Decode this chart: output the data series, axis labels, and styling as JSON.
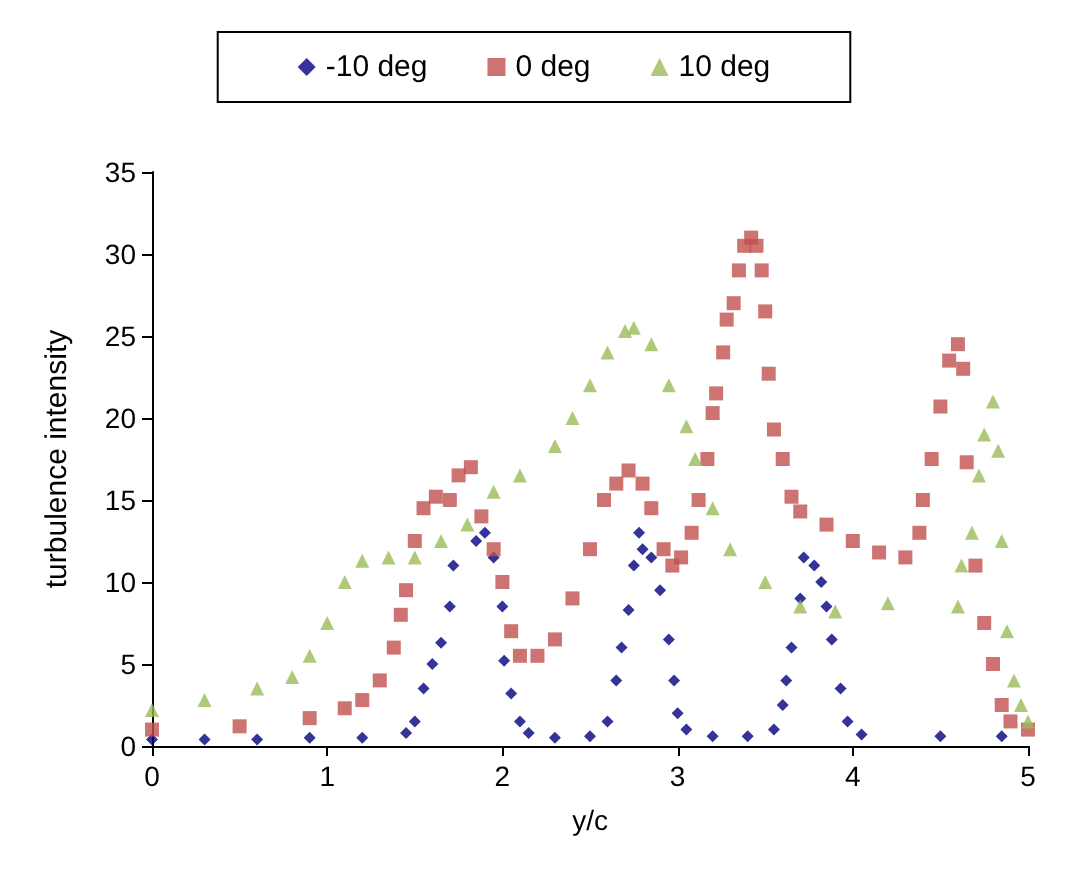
{
  "chart_data": {
    "type": "scatter",
    "xlabel": "y/c",
    "ylabel": "turbulence intensity",
    "xlim": [
      0,
      5
    ],
    "xticks": [
      0,
      1,
      2,
      3,
      4,
      5
    ],
    "ylim": [
      0,
      35
    ],
    "yticks": [
      0,
      5,
      10,
      15,
      20,
      25,
      30,
      35
    ],
    "grid": false,
    "legend": "top",
    "series": [
      {
        "name": "-10 deg",
        "color": "#000080",
        "marker": "diamond",
        "x": [
          0,
          0.3,
          0.6,
          0.9,
          1.2,
          1.45,
          1.5,
          1.55,
          1.6,
          1.65,
          1.7,
          1.72,
          1.85,
          1.9,
          1.95,
          2.0,
          2.01,
          2.05,
          2.1,
          2.15,
          2.3,
          2.5,
          2.6,
          2.65,
          2.68,
          2.72,
          2.75,
          2.78,
          2.8,
          2.85,
          2.9,
          2.95,
          2.98,
          3.0,
          3.05,
          3.2,
          3.4,
          3.55,
          3.6,
          3.62,
          3.65,
          3.7,
          3.72,
          3.78,
          3.82,
          3.85,
          3.88,
          3.93,
          3.97,
          4.05,
          4.5,
          4.85
        ],
        "values": [
          0.4,
          0.4,
          0.4,
          0.5,
          0.5,
          0.8,
          1.5,
          3.5,
          5,
          6.3,
          8.5,
          11,
          12.5,
          13,
          11.5,
          8.5,
          5.2,
          3.2,
          1.5,
          0.8,
          0.5,
          0.6,
          1.5,
          4,
          6,
          8.3,
          11,
          13,
          12,
          11.5,
          9.5,
          6.5,
          4,
          2,
          1,
          0.6,
          0.6,
          1,
          2.5,
          4,
          6,
          9,
          11.5,
          11,
          10,
          8.5,
          6.5,
          3.5,
          1.5,
          0.7,
          0.6,
          0.6
        ]
      },
      {
        "name": "0 deg",
        "color": "#c0504d",
        "marker": "square",
        "x": [
          0,
          0.5,
          0.9,
          1.1,
          1.2,
          1.3,
          1.38,
          1.42,
          1.45,
          1.5,
          1.55,
          1.62,
          1.7,
          1.75,
          1.82,
          1.88,
          1.95,
          2.0,
          2.05,
          2.1,
          2.2,
          2.3,
          2.4,
          2.5,
          2.58,
          2.65,
          2.72,
          2.8,
          2.85,
          2.92,
          2.97,
          3.02,
          3.08,
          3.12,
          3.17,
          3.2,
          3.22,
          3.26,
          3.28,
          3.32,
          3.35,
          3.38,
          3.42,
          3.45,
          3.48,
          3.5,
          3.52,
          3.55,
          3.6,
          3.65,
          3.7,
          3.85,
          4.0,
          4.15,
          4.3,
          4.38,
          4.4,
          4.45,
          4.5,
          4.55,
          4.6,
          4.63,
          4.65,
          4.7,
          4.75,
          4.8,
          4.85,
          4.9,
          5.0
        ],
        "values": [
          1,
          1.2,
          1.7,
          2.3,
          2.8,
          4,
          6,
          8,
          9.5,
          12.5,
          14.5,
          15.2,
          15,
          16.5,
          17,
          14,
          12,
          10,
          7,
          5.5,
          5.5,
          6.5,
          9,
          12,
          15,
          16,
          16.8,
          16,
          14.5,
          12,
          11,
          11.5,
          13,
          15,
          17.5,
          20.3,
          21.5,
          24,
          26,
          27,
          29,
          30.5,
          31,
          30.5,
          29,
          26.5,
          22.7,
          19.3,
          17.5,
          15.2,
          14.3,
          13.5,
          12.5,
          11.8,
          11.5,
          13,
          15,
          17.5,
          20.7,
          23.5,
          24.5,
          23,
          17.3,
          11,
          7.5,
          5,
          2.5,
          1.5,
          1
        ]
      },
      {
        "name": "10 deg",
        "color": "#9bbb59",
        "marker": "triangle",
        "x": [
          0,
          0.3,
          0.6,
          0.8,
          0.9,
          1.0,
          1.1,
          1.2,
          1.35,
          1.5,
          1.65,
          1.8,
          1.95,
          2.1,
          2.3,
          2.4,
          2.5,
          2.6,
          2.7,
          2.75,
          2.85,
          2.95,
          3.05,
          3.1,
          3.2,
          3.3,
          3.5,
          3.7,
          3.9,
          4.2,
          4.6,
          4.62,
          4.68,
          4.72,
          4.75,
          4.8,
          4.83,
          4.85,
          4.88,
          4.92,
          4.96,
          5.0
        ],
        "values": [
          2.2,
          2.8,
          3.5,
          4.2,
          5.5,
          7.5,
          10,
          11.3,
          11.5,
          11.5,
          12.5,
          13.5,
          15.5,
          16.5,
          18.3,
          20,
          22,
          24,
          25.3,
          25.5,
          24.5,
          22,
          19.5,
          17.5,
          14.5,
          12,
          10,
          8.5,
          8.2,
          8.7,
          8.5,
          11,
          13,
          16.5,
          19,
          21,
          18,
          12.5,
          7,
          4,
          2.5,
          1.5
        ]
      }
    ]
  }
}
